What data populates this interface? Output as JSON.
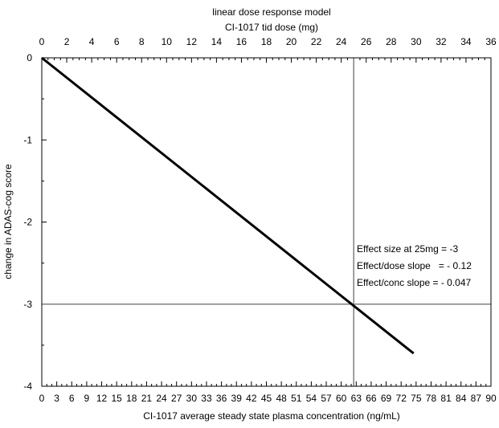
{
  "chart_data": {
    "type": "line",
    "title": "linear dose response model",
    "x_top": {
      "label": "CI-1017 tid dose (mg)",
      "range": [
        0,
        36
      ],
      "ticks": [
        "0",
        "2",
        "4",
        "6",
        "8",
        "10",
        "12",
        "14",
        "16",
        "18",
        "20",
        "22",
        "24",
        "26",
        "28",
        "30",
        "32",
        "34",
        "36"
      ]
    },
    "x_bottom": {
      "label": "CI-1017 average steady state plasma concentration (ng/mL)",
      "range": [
        0,
        90
      ],
      "ticks": [
        "0",
        "3",
        "6",
        "9",
        "12",
        "15",
        "18",
        "21",
        "24",
        "27",
        "30",
        "33",
        "36",
        "39",
        "42",
        "45",
        "48",
        "51",
        "54",
        "57",
        "60",
        "63",
        "66",
        "69",
        "72",
        "75",
        "78",
        "81",
        "84",
        "87",
        "90"
      ]
    },
    "y": {
      "label": "change in ADAS-cog score",
      "range": [
        -4,
        0
      ],
      "ticks": [
        "0",
        "-1",
        "-2",
        "-3",
        "-4"
      ]
    },
    "series": [
      {
        "x": [
          0,
          29.8
        ],
        "y": [
          0,
          -3.6
        ]
      }
    ],
    "reference_lines": {
      "x_dose": 25,
      "y_score": -3
    },
    "annotations": [
      "Effect size at 25mg = -3",
      "Effect/dose slope   = - 0.12",
      "Effect/conc slope = - 0.047"
    ],
    "grid": false
  }
}
